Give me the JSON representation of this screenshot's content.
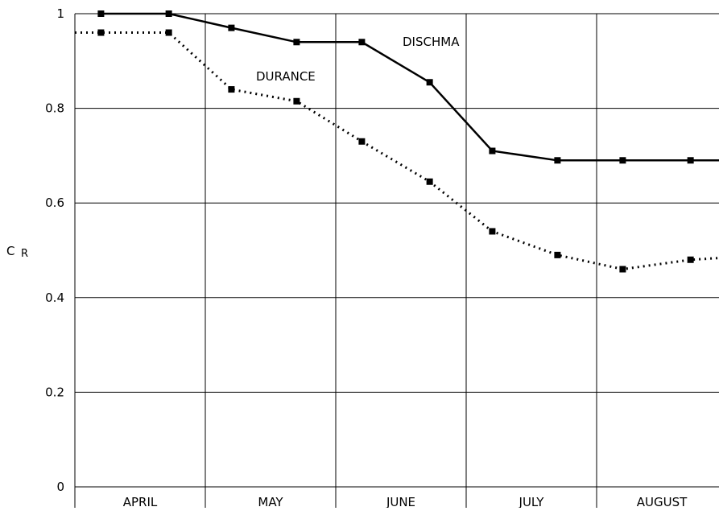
{
  "chart_data": {
    "type": "line",
    "ylabel": "C",
    "ylabel_subscript": "R",
    "ylim": [
      0,
      1
    ],
    "yticks": [
      "0",
      "0.2",
      "0.4",
      "0.6",
      "0.8",
      "1"
    ],
    "ytick_values": [
      0,
      0.2,
      0.4,
      0.6,
      0.8,
      1
    ],
    "months": [
      "APRIL",
      "MAY",
      "JUNE",
      "JULY",
      "AUGUST"
    ],
    "xlim": [
      0,
      5.9
    ],
    "grid": true,
    "series": [
      {
        "name": "DISCHMA",
        "style": "solid",
        "x": [
          0.2,
          0.72,
          1.2,
          1.7,
          2.2,
          2.72,
          3.2,
          3.7,
          4.2,
          4.72,
          5.9
        ],
        "y": [
          1.0,
          1.0,
          0.97,
          0.94,
          0.94,
          0.855,
          0.71,
          0.69,
          0.69,
          0.69,
          0.69
        ]
      },
      {
        "name": "DURANCE",
        "style": "dotted",
        "x": [
          0.0,
          0.2,
          0.72,
          1.2,
          1.7,
          2.2,
          2.72,
          3.2,
          3.7,
          4.2,
          4.72,
          5.9
        ],
        "y": [
          0.96,
          0.96,
          0.96,
          0.84,
          0.815,
          0.73,
          0.645,
          0.54,
          0.49,
          0.46,
          0.48,
          0.5
        ]
      }
    ],
    "colors": {
      "line": "#000000",
      "grid": "#000000",
      "background": "#ffffff"
    }
  }
}
